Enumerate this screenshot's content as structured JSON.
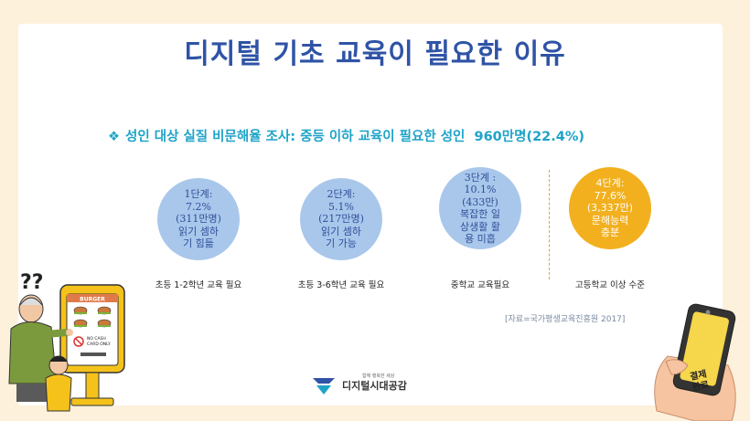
{
  "title": "디지털 기초 교육이 필요한 이유",
  "subtitle": {
    "bullet_icon": "diamond-bullet",
    "text": "성인 대상 실질 비문해율 조사: 중등 이하 교육이 필요한 성인",
    "value": "960만명(22.4%)"
  },
  "stages": [
    {
      "lines": [
        "1단계:",
        "7.2%",
        "(311만명)",
        "읽기 셈하",
        "기 힘듦"
      ],
      "caption": "초등 1-2학년 교육 필요"
    },
    {
      "lines": [
        "2단계:",
        "5.1%",
        "(217만명)",
        "읽기 셈하",
        "기 가능"
      ],
      "caption": "초등 3-6학년 교육 필요"
    },
    {
      "lines": [
        "3단계 :",
        "10.1%",
        "(433만)",
        "복잡한 일",
        "상생활 활",
        "용 미흡"
      ],
      "caption": "중학교 교육필요"
    },
    {
      "lines": [
        "4단계:",
        "77.6%",
        "(3,337만)",
        "문해능력",
        "충분"
      ],
      "caption": "고등학교 이상 수준"
    }
  ],
  "source": "[자료=국가평생교육진흥원 2017]",
  "kiosk": {
    "header": "BURGER",
    "notice_line1": "NO CASH",
    "notice_line2": "CARD ONLY"
  },
  "question_marks": "??",
  "logo": {
    "slogan": "함께 행복한 세상",
    "name": "디지털시대공감"
  },
  "phone_badge": {
    "line1": "결제",
    "line2": "완료"
  },
  "colors": {
    "title": "#2f53a6",
    "subtitle": "#1ea3c8",
    "circle": "#a9c7eb",
    "circle_highlight": "#f2b01e",
    "background": "#fdf1dc"
  }
}
